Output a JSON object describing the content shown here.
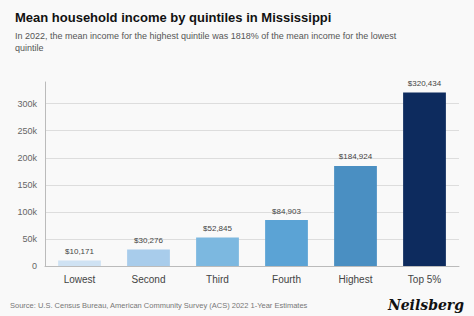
{
  "chart_data": {
    "type": "bar",
    "title": "Mean household income by quintiles in Mississippi",
    "subtitle": "In 2022, the mean income for the highest quintile was 1818% of the mean income for the lowest\nquintile",
    "annotations": [
      "Source: U.S. Census Bureau, American Community Survey (ACS) 2022 1-Year Estimates",
      "Neilsberg"
    ],
    "categories": [
      "Lowest",
      "Second",
      "Third",
      "Fourth",
      "Highest",
      "Top 5%"
    ],
    "values": [
      10171,
      30276,
      52845,
      84903,
      184924,
      320434
    ],
    "value_labels": [
      "$10,171",
      "$30,276",
      "$52,845",
      "$84,903",
      "$184,924",
      "$320,434"
    ],
    "data_labels": true,
    "colors": [
      "#cfe2f3",
      "#a8cceb",
      "#7cb8e0",
      "#5ba3d5",
      "#4a8fc2",
      "#0d2b5e"
    ],
    "ylim": [
      0,
      340000
    ],
    "yticks": [
      0,
      {
        "value": 50000,
        "label": "50k"
      },
      {
        "value": 100000,
        "label": "100k"
      },
      {
        "value": 150000,
        "label": "150k"
      },
      {
        "value": 200000,
        "label": "200k"
      },
      {
        "value": 250000,
        "label": "250k"
      },
      {
        "value": 300000,
        "label": "300k"
      }
    ],
    "grid": true
  }
}
